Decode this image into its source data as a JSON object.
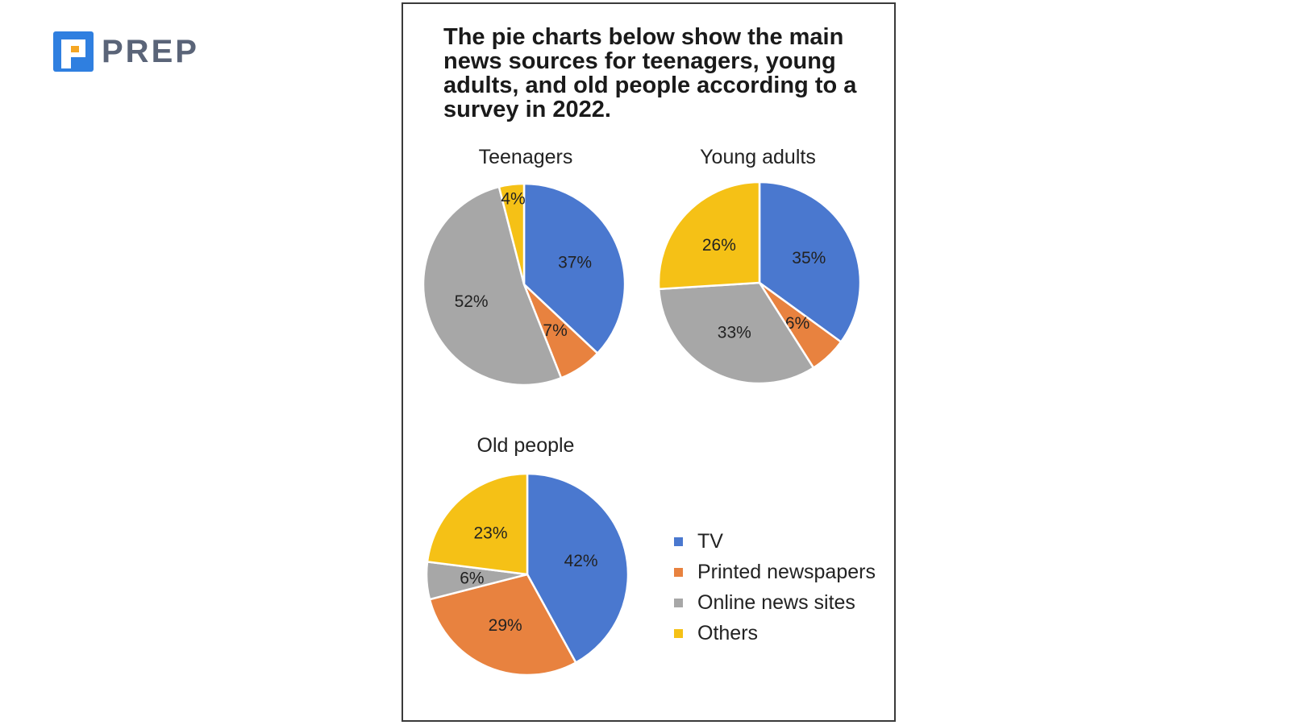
{
  "brand": {
    "name": "PREP",
    "color": "#2f7fe0"
  },
  "card": {
    "title": "The pie charts below show the main news sources for teenagers, young adults, and old people according to a survey in 2022."
  },
  "colors": {
    "TV": "#4a78cf",
    "Printed newspapers": "#e8823f",
    "Online news sites": "#a7a7a7",
    "Others": "#f5c116"
  },
  "legend": [
    {
      "label": "TV",
      "color": "#4a78cf"
    },
    {
      "label": "Printed newspapers",
      "color": "#e8823f"
    },
    {
      "label": "Online news sites",
      "color": "#a7a7a7"
    },
    {
      "label": "Others",
      "color": "#f5c116"
    }
  ],
  "chart_data": [
    {
      "type": "pie",
      "title": "Teenagers",
      "slices": [
        {
          "label": "TV",
          "value": 37,
          "display": "37%"
        },
        {
          "label": "Printed newspapers",
          "value": 7,
          "display": "7%"
        },
        {
          "label": "Online news sites",
          "value": 52,
          "display": "52%"
        },
        {
          "label": "Others",
          "value": 4,
          "display": "4%"
        }
      ]
    },
    {
      "type": "pie",
      "title": "Young adults",
      "slices": [
        {
          "label": "TV",
          "value": 35,
          "display": "35%"
        },
        {
          "label": "Printed newspapers",
          "value": 6,
          "display": "6%"
        },
        {
          "label": "Online news sites",
          "value": 33,
          "display": "33%"
        },
        {
          "label": "Others",
          "value": 26,
          "display": "26%"
        }
      ]
    },
    {
      "type": "pie",
      "title": "Old people",
      "slices": [
        {
          "label": "TV",
          "value": 42,
          "display": "42%"
        },
        {
          "label": "Printed newspapers",
          "value": 29,
          "display": "29%"
        },
        {
          "label": "Online news sites",
          "value": 6,
          "display": "6%"
        },
        {
          "label": "Others",
          "value": 23,
          "display": "23%"
        }
      ]
    }
  ]
}
